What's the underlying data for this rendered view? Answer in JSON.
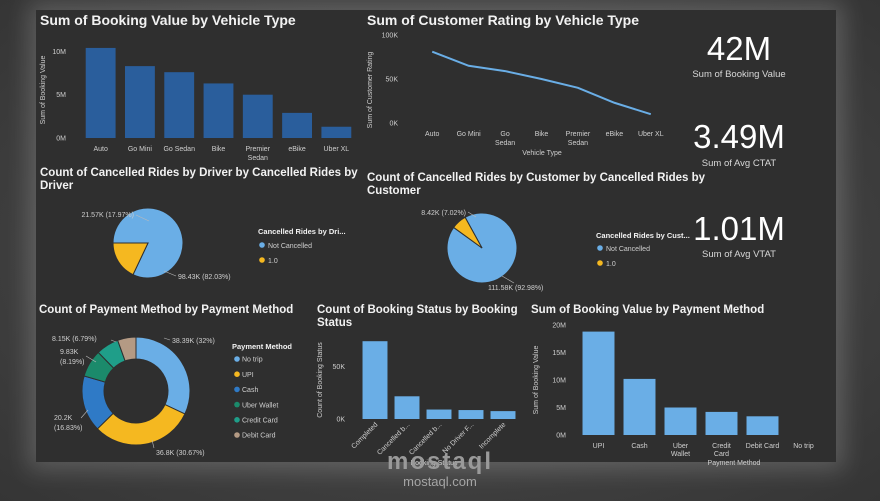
{
  "watermark": {
    "brand": "mostaql",
    "url": "mostaql.com"
  },
  "kpis": [
    {
      "value": "42M",
      "label": "Sum of Booking Value"
    },
    {
      "value": "3.49M",
      "label": "Sum of Avg CTAT"
    },
    {
      "value": "1.01M",
      "label": "Sum of Avg VTAT"
    }
  ],
  "colors": {
    "bar_dark": "#2a5e9c",
    "bar_light": "#6aaee6",
    "line": "#6aaee6",
    "not_cancelled": "#6aaee6",
    "cancelled": "#f5b820",
    "no_trip": "#6aaee6",
    "upi": "#f5b820",
    "cash": "#2f7ac6",
    "uber_wallet": "#1b8a6b",
    "credit_card": "#1f9e89",
    "debit_card": "#b49a84"
  },
  "chart_data": [
    {
      "id": "booking_by_vehicle",
      "type": "bar",
      "title": "Sum of Booking Value by Vehicle Type",
      "xlabel": "",
      "ylabel": "Sum of Booking Value",
      "categories": [
        "Auto",
        "Go Mini",
        "Go Sedan",
        "Bike",
        "Premier Sedan",
        "eBike",
        "Uber XL"
      ],
      "category_lines": [
        [
          "Auto"
        ],
        [
          "Go Mini"
        ],
        [
          "Go Sedan"
        ],
        [
          "Bike"
        ],
        [
          "Premier",
          "Sedan"
        ],
        [
          "eBike"
        ],
        [
          "Uber XL"
        ]
      ],
      "values": [
        10.4,
        8.3,
        7.6,
        6.3,
        5.0,
        2.9,
        1.3
      ],
      "value_unit": "M",
      "yticks": [
        {
          "v": 0,
          "label": "0M"
        },
        {
          "v": 5,
          "label": "5M"
        },
        {
          "v": 10,
          "label": "10M"
        }
      ],
      "ylim": [
        0,
        11.2
      ]
    },
    {
      "id": "rating_by_vehicle",
      "type": "line",
      "title": "Sum of Customer Rating by Vehicle Type",
      "xlabel": "Vehicle Type",
      "ylabel": "Sum of Customer Rating",
      "categories": [
        "Auto",
        "Go Mini",
        "Go Sedan",
        "Bike",
        "Premier Sedan",
        "eBike",
        "Uber XL"
      ],
      "category_lines": [
        [
          "Auto"
        ],
        [
          "Go Mini"
        ],
        [
          "Go",
          "Sedan"
        ],
        [
          "Bike"
        ],
        [
          "Premier",
          "Sedan"
        ],
        [
          "eBike"
        ],
        [
          "Uber XL"
        ]
      ],
      "values": [
        81,
        65,
        59,
        50,
        40,
        23,
        10
      ],
      "value_unit": "K",
      "yticks": [
        {
          "v": 0,
          "label": "0K"
        },
        {
          "v": 50,
          "label": "50K"
        },
        {
          "v": 100,
          "label": "100K"
        }
      ],
      "ylim": [
        0,
        100
      ]
    },
    {
      "id": "cancelled_by_driver",
      "type": "pie",
      "title": "Count of Cancelled Rides by Driver by Cancelled Rides by Driver",
      "title_lines": [
        "Count of Cancelled Rides by Driver by Cancelled Rides by",
        "Driver"
      ],
      "legend_title": "Cancelled Rides by Dri...",
      "slices": [
        {
          "name": "Not Cancelled",
          "value": 98.43,
          "label": "98.43K (82.03%)"
        },
        {
          "name": "1.0",
          "value": 21.57,
          "label": "21.57K (17.97%)"
        }
      ]
    },
    {
      "id": "cancelled_by_customer",
      "type": "pie",
      "title": "Count of Cancelled Rides by Customer by Cancelled Rides by Customer",
      "title_lines": [
        "Count of Cancelled Rides by Customer by Cancelled Rides by",
        "Customer"
      ],
      "legend_title": "Cancelled Rides by Cust...",
      "slices": [
        {
          "name": "Not Cancelled",
          "value": 111.58,
          "label": "111.58K (92.98%)"
        },
        {
          "name": "1.0",
          "value": 8.42,
          "label": "8.42K (7.02%)"
        }
      ]
    },
    {
      "id": "payment_method_count",
      "type": "pie",
      "title": "Count of Payment Method by Payment Method",
      "legend_title": "Payment Method",
      "slices": [
        {
          "name": "No trip",
          "value": 38.39,
          "label_lines": [
            "38.39K (32%)"
          ]
        },
        {
          "name": "UPI",
          "value": 36.8,
          "label_lines": [
            "36.8K (30.67%)"
          ]
        },
        {
          "name": "Cash",
          "value": 20.2,
          "label_lines": [
            "20.2K",
            "(16.83%)"
          ]
        },
        {
          "name": "Uber Wallet",
          "value": 9.83,
          "label_lines": [
            "9.83K",
            "(8.19%)"
          ]
        },
        {
          "name": "Credit Card",
          "value": 8.15,
          "label_lines": [
            "8.15K (6.79%)"
          ]
        },
        {
          "name": "Debit Card",
          "value": 6.63,
          "label_lines": []
        }
      ]
    },
    {
      "id": "booking_status_count",
      "type": "bar",
      "title": "Count of Booking Status by Booking Status",
      "title_lines": [
        "Count of Booking Status by Booking",
        "Status"
      ],
      "xlabel": "Booking Status",
      "ylabel": "Count of Booking Status",
      "categories": [
        "Completed",
        "Cancelled b...",
        "Cancelled b...",
        "No Driver F...",
        "Incomplete"
      ],
      "values": [
        74,
        21.6,
        9,
        8.5,
        7.5
      ],
      "value_unit": "K",
      "yticks": [
        {
          "v": 0,
          "label": "0K"
        },
        {
          "v": 50,
          "label": "50K"
        }
      ],
      "ylim": [
        0,
        78
      ]
    },
    {
      "id": "booking_by_payment",
      "type": "bar",
      "title": "Sum of Booking Value by Payment Method",
      "xlabel": "Payment Method",
      "ylabel": "Sum of Booking Value",
      "categories": [
        "UPI",
        "Cash",
        "Uber Wallet",
        "Credit Card",
        "Debit Card",
        "No trip"
      ],
      "category_lines": [
        [
          "UPI"
        ],
        [
          "Cash"
        ],
        [
          "Uber",
          "Wallet"
        ],
        [
          "Credit",
          "Card"
        ],
        [
          "Debit Card"
        ],
        [
          "No trip"
        ]
      ],
      "values": [
        18.8,
        10.2,
        5.0,
        4.2,
        3.4,
        0
      ],
      "value_unit": "M",
      "yticks": [
        {
          "v": 0,
          "label": "0M"
        },
        {
          "v": 5,
          "label": "5M"
        },
        {
          "v": 10,
          "label": "10M"
        },
        {
          "v": 15,
          "label": "15M"
        },
        {
          "v": 20,
          "label": "20M"
        }
      ],
      "ylim": [
        0,
        20
      ]
    }
  ]
}
